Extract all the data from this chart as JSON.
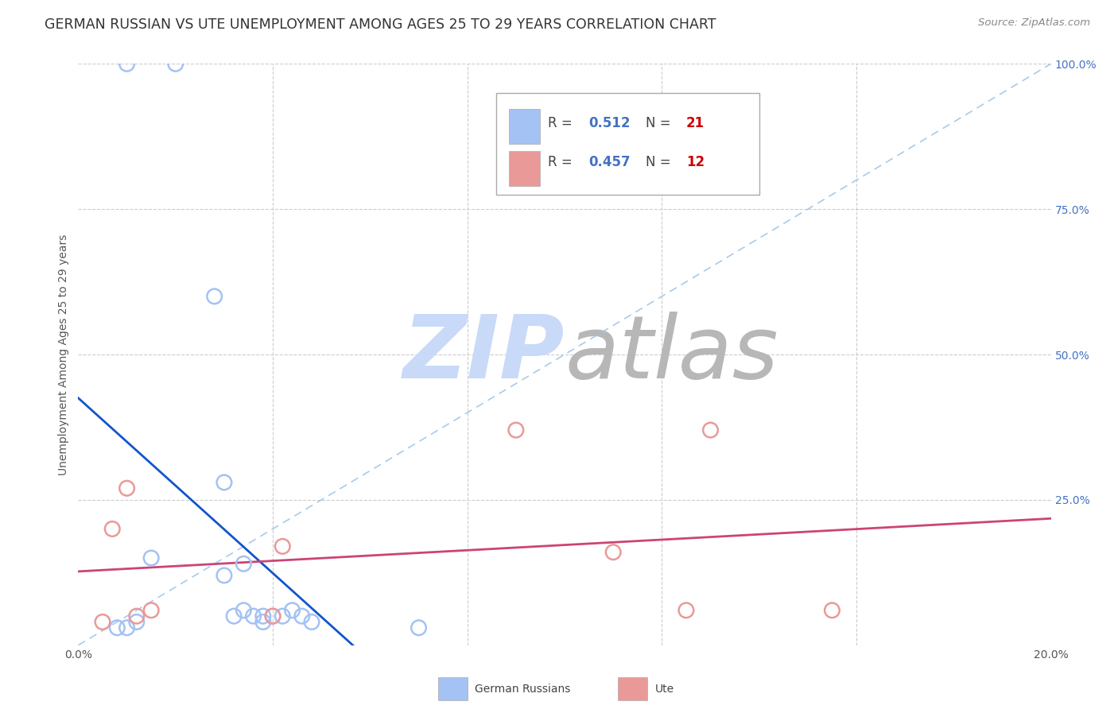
{
  "title": "GERMAN RUSSIAN VS UTE UNEMPLOYMENT AMONG AGES 25 TO 29 YEARS CORRELATION CHART",
  "source": "Source: ZipAtlas.com",
  "ylabel": "Unemployment Among Ages 25 to 29 years",
  "xlim": [
    0.0,
    0.2
  ],
  "ylim": [
    0.0,
    1.0
  ],
  "xticks": [
    0.0,
    0.04,
    0.08,
    0.12,
    0.16,
    0.2
  ],
  "xticklabels": [
    "0.0%",
    "",
    "",
    "",
    "",
    "20.0%"
  ],
  "yticks": [
    0.0,
    0.25,
    0.5,
    0.75,
    1.0
  ],
  "yticklabels_right": [
    "",
    "25.0%",
    "50.0%",
    "75.0%",
    "100.0%"
  ],
  "german_russian_x": [
    0.01,
    0.02,
    0.028,
    0.03,
    0.034,
    0.03,
    0.032,
    0.034,
    0.036,
    0.038,
    0.038,
    0.04,
    0.042,
    0.044,
    0.046,
    0.048,
    0.07,
    0.01,
    0.015,
    0.008,
    0.012
  ],
  "german_russian_y": [
    1.0,
    1.0,
    0.6,
    0.28,
    0.14,
    0.12,
    0.05,
    0.06,
    0.05,
    0.04,
    0.05,
    0.05,
    0.05,
    0.06,
    0.05,
    0.04,
    0.03,
    0.03,
    0.15,
    0.03,
    0.04
  ],
  "ute_x": [
    0.005,
    0.007,
    0.01,
    0.012,
    0.015,
    0.04,
    0.042,
    0.09,
    0.11,
    0.125,
    0.13,
    0.155
  ],
  "ute_y": [
    0.04,
    0.2,
    0.27,
    0.05,
    0.06,
    0.05,
    0.17,
    0.37,
    0.16,
    0.06,
    0.37,
    0.06
  ],
  "blue_scatter_color": "#a4c2f4",
  "pink_scatter_color": "#ea9999",
  "blue_line_color": "#1155cc",
  "pink_line_color": "#cc4477",
  "diag_color": "#9fc5e8",
  "watermark_zip_color": "#c9daf8",
  "watermark_atlas_color": "#b7b7b7",
  "background_color": "#ffffff",
  "grid_color": "#cccccc",
  "title_fontsize": 12.5,
  "axis_label_fontsize": 10,
  "tick_fontsize": 10,
  "legend_fontsize": 12
}
